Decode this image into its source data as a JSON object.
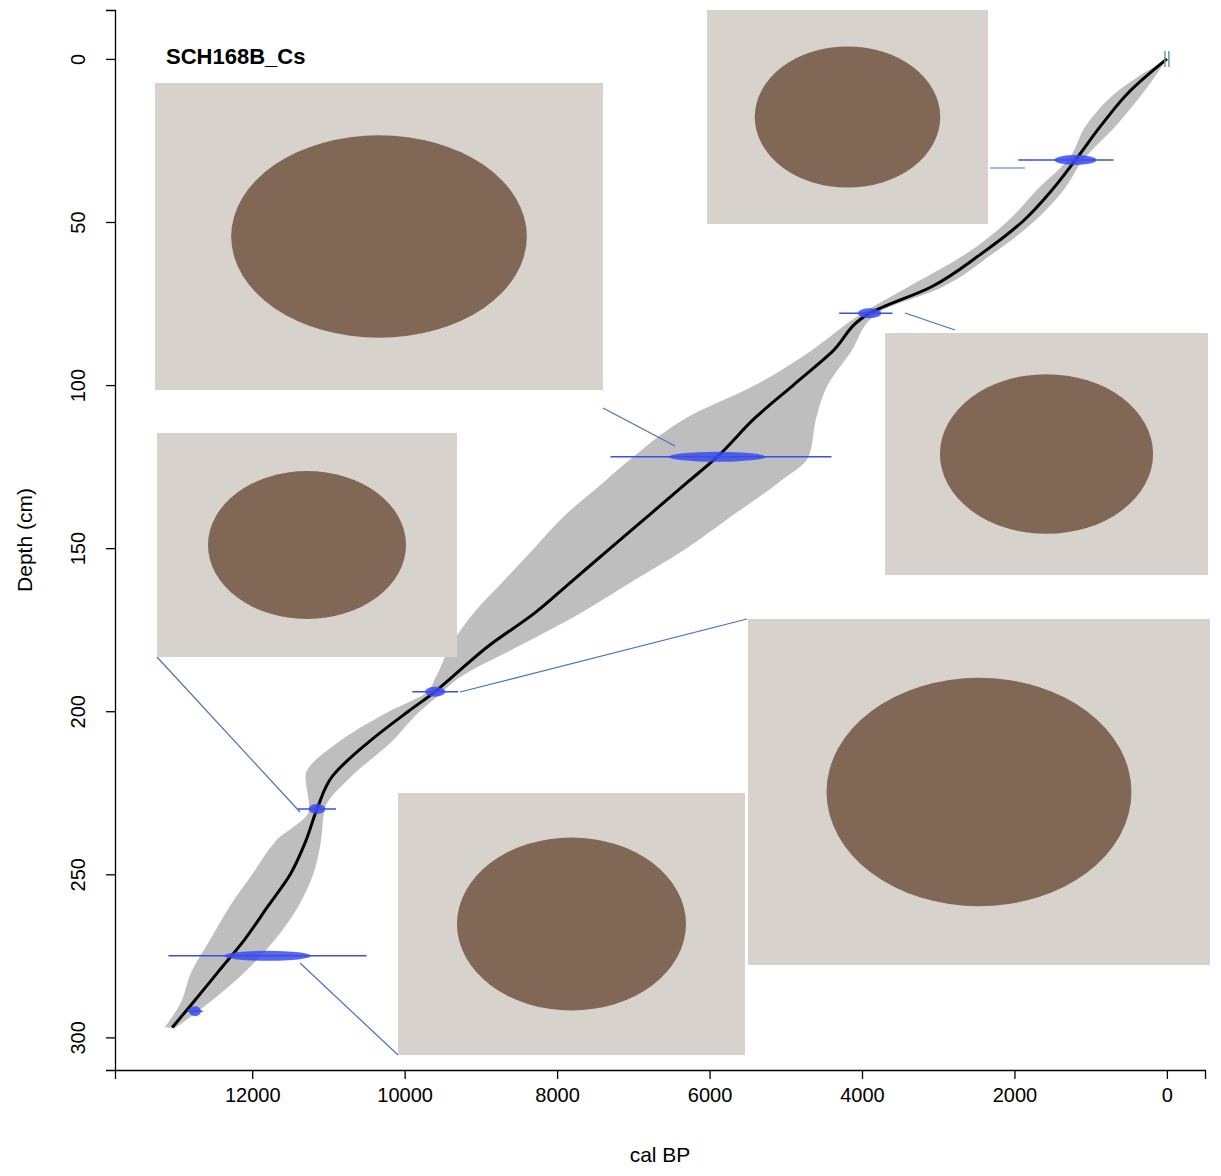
{
  "chart_data": {
    "type": "line",
    "title": "SCH168B_Cs",
    "x_label": "cal BP",
    "y_label": "Depth (cm)",
    "xlim": [
      13800,
      -500
    ],
    "ylim": [
      -15,
      310
    ],
    "xticks": [
      12000,
      10000,
      8000,
      6000,
      4000,
      2000,
      0
    ],
    "yticks": [
      0,
      50,
      100,
      150,
      200,
      250,
      300
    ],
    "series": [
      {
        "type": "area",
        "color": "#bebebe",
        "y": [
          0,
          10,
          20,
          31,
          40,
          50,
          60,
          70,
          78,
          90,
          100,
          110,
          122,
          130,
          140,
          150,
          160,
          170,
          180,
          190,
          194,
          200,
          210,
          220,
          230,
          240,
          250,
          260,
          270,
          280,
          290,
          297
        ],
        "x_min": [
          0,
          300,
          650,
          1100,
          1350,
          1750,
          2300,
          2950,
          3800,
          4150,
          4450,
          4600,
          4700,
          5100,
          5700,
          6300,
          7000,
          7700,
          8500,
          9300,
          9500,
          9800,
          10200,
          10700,
          11050,
          11100,
          11200,
          11400,
          11700,
          12100,
          12600,
          13000
        ],
        "x_max": [
          0,
          650,
          1050,
          1300,
          1700,
          2100,
          2650,
          3400,
          4000,
          4700,
          5400,
          6300,
          7000,
          7400,
          7900,
          8300,
          8700,
          9100,
          9400,
          9600,
          9700,
          10200,
          10900,
          11300,
          11250,
          11700,
          12000,
          12300,
          12550,
          12800,
          12950,
          13150
        ]
      },
      {
        "type": "line",
        "color": "#000000",
        "y": [
          0,
          10,
          20,
          31,
          40,
          50,
          60,
          70,
          78,
          90,
          100,
          110,
          122,
          130,
          140,
          150,
          160,
          170,
          180,
          190,
          194,
          200,
          210,
          220,
          230,
          240,
          250,
          260,
          270,
          280,
          290,
          297
        ],
        "x": [
          0,
          490,
          850,
          1200,
          1500,
          1900,
          2450,
          3100,
          3900,
          4400,
          4900,
          5400,
          5900,
          6300,
          6800,
          7300,
          7800,
          8300,
          8900,
          9400,
          9600,
          9950,
          10500,
          10950,
          11150,
          11300,
          11500,
          11800,
          12100,
          12450,
          12800,
          13050
        ]
      },
      {
        "type": "scatter",
        "color": "#3b4cf0",
        "marker": "ellipse",
        "y": [
          31,
          78,
          122,
          194,
          230,
          275,
          292
        ],
        "x": [
          1200,
          3900,
          5900,
          9600,
          11150,
          11800,
          12750
        ],
        "x_min": [
          700,
          3600,
          4400,
          9300,
          10900,
          10500,
          12650
        ],
        "x_max": [
          1950,
          4300,
          7300,
          9900,
          11400,
          13100,
          12850
        ]
      },
      {
        "type": "scatter",
        "color": "#5aa0a0",
        "marker": "vline",
        "y": [
          0
        ],
        "x": [
          0
        ]
      }
    ]
  }
}
